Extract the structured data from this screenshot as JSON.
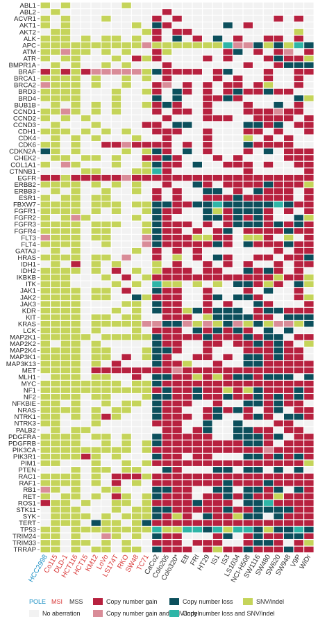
{
  "chart_data": {
    "type": "heatmap",
    "genes": [
      "ABL1",
      "ABL2",
      "ACVR1",
      "AKT1",
      "AKT2",
      "ALK",
      "APC",
      "ATM",
      "ATR",
      "BMPR1A",
      "BRAF",
      "BRCA1",
      "BRCA2",
      "BRD3",
      "BRD4",
      "BUB1B",
      "CCND1",
      "CCND2",
      "CCND3",
      "CDH1",
      "CDK4",
      "CDK6",
      "CDKN2A",
      "CHEK2",
      "COL1A1",
      "CTNNB1",
      "EGFR",
      "ERBB2",
      "ERBB3",
      "ESR1",
      "FBXW7",
      "FGFR1",
      "FGFR2",
      "FGFR3",
      "FGFR4",
      "FLT3",
      "FLT4",
      "GATA3",
      "HRAS",
      "IDH1",
      "IDH2",
      "IKBKB",
      "ITK",
      "JAK1",
      "JAK2",
      "JAK3",
      "KDR",
      "KIT",
      "KRAS",
      "LCK",
      "MAP2K1",
      "MAP2K2",
      "MAP2K4",
      "MAP3K1",
      "MAP3K13",
      "MET",
      "MLH1",
      "MYC",
      "NF1",
      "NF2",
      "NFKBIE",
      "NRAS",
      "NTRK1",
      "NTRK3",
      "PALB2",
      "PDGFRA",
      "PDGFRB",
      "PIK3CA",
      "PIK3R1",
      "PIM1",
      "PTEN",
      "RAC1",
      "RAF1",
      "RB1",
      "RET",
      "ROS1",
      "STK11",
      "SYK",
      "TERT",
      "TP53",
      "TRIM24",
      "TRIM33",
      "TRRAP"
    ],
    "cell_lines": [
      {
        "name": "HCC2998",
        "group": "POLE"
      },
      {
        "name": "Co115",
        "group": "MSI"
      },
      {
        "name": "DLD-1",
        "group": "MSI"
      },
      {
        "name": "HCT116",
        "group": "MSI"
      },
      {
        "name": "HCT15",
        "group": "MSI"
      },
      {
        "name": "KM12",
        "group": "MSI"
      },
      {
        "name": "LoVo",
        "group": "MSI"
      },
      {
        "name": "LS174T",
        "group": "MSI"
      },
      {
        "name": "RKO",
        "group": "MSI"
      },
      {
        "name": "SW48",
        "group": "MSI"
      },
      {
        "name": "TC71",
        "group": "MSI"
      },
      {
        "name": "CaCo2",
        "group": "MSS"
      },
      {
        "name": "Colo205",
        "group": "MSS"
      },
      {
        "name": "Colo320*",
        "group": "MSS"
      },
      {
        "name": "EB",
        "group": "MSS"
      },
      {
        "name": "FRI",
        "group": "MSS"
      },
      {
        "name": "HT29",
        "group": "MSS"
      },
      {
        "name": "IS1",
        "group": "MSS"
      },
      {
        "name": "IS3",
        "group": "MSS"
      },
      {
        "name": "LS1034",
        "group": "MSS"
      },
      {
        "name": "NCI-H508",
        "group": "MSS"
      },
      {
        "name": "SW1116",
        "group": "MSS"
      },
      {
        "name": "SW480",
        "group": "MSS"
      },
      {
        "name": "SW620",
        "group": "MSS"
      },
      {
        "name": "SW948",
        "group": "MSS"
      },
      {
        "name": "V9P",
        "group": "MSS"
      },
      {
        "name": "WiDr",
        "group": "MSS"
      }
    ],
    "matrix": [
      "S.S.....S..................",
      ".S..........R..............",
      "S.S...S....R.R.........R.R.",
      "S.S......S.LR.....L.R......",
      ".SS.......SR.RR..........S.",
      "SSS.S.SS.S.R.L.R.L.R..RR.R.",
      "SSSSSSSSSSPSSSSSSSTPPLSLSTL",
      "SSPSS.S.S..RS.....RL.R.RP.R",
      "S.SS...S.RSR....R.R...RLRRS",
      ".S.S..S.S...R.......R..RLLL",
      "RSRSRPPPPPSLRRRR.RL...R..RR",
      "SSSS.S..S.S.R....R.R..R..R.",
      "PSSS.S..S..RP.R.R.RR.RS..R.",
      "SSSS...S..SR.LR.R.RLRRLRR..",
      "SSSS...S...L.L..RRLR.....LS",
      ".S.S.S.S..SRLR..R...R..L.R.",
      "SSPS.S.S...R.RR.R...RRRPRR.",
      "S.S.S.......R...RRR..RRRR.R",
      ".S...S....RR.LL.....LLRL.RR",
      "SSS.S.S.S..RRR..R...RR.R..R",
      ".S.S.S...S..R...R...S.R.R..",
      "SS.S..RRPRRRR.R.R...LRRRR..",
      "LS.S....S.SLR.L.R...R.L.RRR",
      ".SS.SS.S..RRLR...R.R....RRR",
      "S.PS...S..SLRR.L..RRR.R..RR",
      "....SS...SSTR.......R.....R",
      "RRSRRRRRPRRRRRRRRRRRRRRRRRR",
      "SSSS.S.S.S..R..LR.RRRRLRRRS",
      ".S.S..S..S.R.R..LL.R.LRRR.R",
      "S.SS.SS....R.R..RRRLRRRRR.R",
      "SSSS.SSS.SSLLRRLLTLLLLLTLRR",
      "SSSS.S.S..SLRR..LSRLLLR.R.R",
      "S.SPS....S.LR...LLRLRLR..LS",
      "SSSS.SSS..SLRRR.R.RLLLRLRLR",
      "SSSS.SS...SLRR.R.RL.RRRRLRR",
      "PSSS.SS...PLRRRSSRR.SSR.S.R",
      "SSSS..S...PLRRRRRLR.LRRRLRR",
      ".S.S.....S.R.R.R.......R.RR",
      "SSSS.SS.P..R.S.R.LR..RR.RRL",
      ".S.R.S.S...S.R..R.R.R..R.RR",
      "SSSS.S.R.S.SRRR.RR..LRLR.R.",
      "SSS...S.R.SRRRRRRRRRRRRSRRS",
      "SSS....S.S.TSS.S.S.LLRSR.LS",
      "SSSS.SS.R..LRR..R...R.L..R.",
      "SSSS.SS..LSRRR..RL.LLR...RS",
      "SSSS....SS.LRR..R.R..LR...R",
      "SSSS...S.S.LRRSLRLLL.RLLRRR",
      "SSSS.SS.SS..RRR.SLLLLRR.LLL",
      "SSSS.SSSSSPPLLPSPSLPSLSPPSL",
      "SSSS.S...S.RRR.LRLRLR.L.L..",
      "SSSSS.SSSSSLRRRRLRRRLRLL.RR",
      "S.SS.S.....LRR..RR.RRLRLR.S",
      "SSSS.SS...SLLR..R...RRRLRR.",
      "SSSS.SS.R.SLR..RR.R.LLRLRR.",
      "SSSS.S.R...LRRS..R..LLRRRRR",
      "SSSS.RRRRRRRRPRRRRRRRRRRRRR",
      ".SSS.SS..R.LLRRSRSRLLRLLL.L",
      "SSSSSSSS.SSLRRRRRRRRRRRRRRR",
      "SSSSSSSSSSSRLRRLRRSRSLRRRLR",
      "SSSS.SS...SLLRRLRRLRRLRLRLR",
      "SS.S..S.SS.LRRR..R..LLRLRR.",
      "SSSS.S.SS..LRR..RLRLR.RL.RR",
      "SS.S.SRS...LRRR.RL..RLR.LLR",
      "SS...S.....RRR..L..L...RR..",
      ".S.SS.......RR.RL..LLRR.RR.",
      "SSSS.SS.S..LRRRRR..LLLRL.RR",
      "SSSS..S.S.SLRRRRRRRRLLR.RRR",
      "SSSSSSSSS.SRRRRRRRRRRRPRRRR",
      "SSSSRS.S...LRR.RR...LLRLRLR",
      "SS...S..S.SRRRRRRRRRRRRRRRS",
      "...S.SS.SS..LR...LL.LL.L.L.",
      "SSSS.S.RRRSRRRRRRRRRRRRRRRR",
      "SSSS.S.R.S.RRRRRRRLRRRLRRRR",
      "PS.S..SS...LLRR..LL.LLRL.LR",
      "S.SS.S.RS.SLRRR.RRLRLRRSRRR",
      "RSS.S..SS.SRRRRLRRR.LLTRRRR",
      ".SSS...S.SSLLRRRRRLRRLLLLRR",
      ".SSSS.S.SSSLRSR.LRRSLL.LRRR",
      ".SSS.LSS.SLRRRRRRRRRRRRRRRR",
      "SS.SSSSSSSSTSSTTLTSTTLSLLTL",
      "SS.S..PS.S.LRR...RL.RLRRLLR",
      "SS.SS.S.S..RRR.RRR..RLLR.RS",
      "SS.S.SS.SS.LRRR.RSRRLRRRLRR"
    ],
    "legend": {
      "groups": [
        {
          "label": "POLE",
          "color": "#1a8fc4"
        },
        {
          "label": "MSI",
          "color": "#d83535"
        },
        {
          "label": "MSS",
          "color": "#333333"
        }
      ],
      "items": [
        {
          "code": ".",
          "label": "No aberration",
          "color": "#f2f2f2"
        },
        {
          "code": "R",
          "label": "Copy number gain",
          "color": "#b7213f"
        },
        {
          "code": "P",
          "label": "Copy number gain and SNV/indel",
          "color": "#d98c98"
        },
        {
          "code": "L",
          "label": "Copy number loss",
          "color": "#0c4f5c"
        },
        {
          "code": "T",
          "label": "Copy number loss and SNV/indel",
          "color": "#2eb5a7"
        },
        {
          "code": "S",
          "label": "SNV/indel",
          "color": "#c5d45a"
        }
      ]
    }
  }
}
